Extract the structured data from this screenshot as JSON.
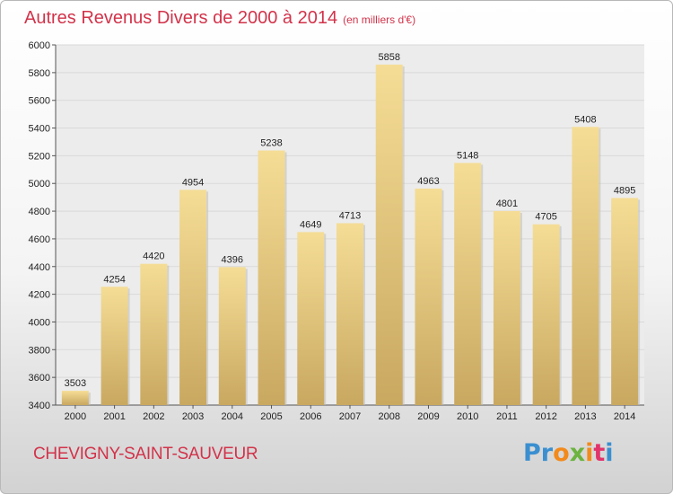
{
  "title": "Autres Revenus Divers de 2000 à 2014",
  "unit": "(en milliers d'€)",
  "location": "CHEVIGNY-SAINT-SAUVEUR",
  "brand": {
    "letters": [
      "P",
      "r",
      "o",
      "x",
      "i",
      "t",
      "i"
    ],
    "colors": [
      "#3a8fd0",
      "#3a8fd0",
      "#f28a1c",
      "#6cb33f",
      "#f28a1c",
      "#e2336b",
      "#3a8fd0"
    ]
  },
  "colors": {
    "bar_top": "#f5dd96",
    "bar_bottom": "#c9a860",
    "title": "#d2334a",
    "grid": "#d9d9d9"
  },
  "chart_data": {
    "type": "bar",
    "categories": [
      "2000",
      "2001",
      "2002",
      "2003",
      "2004",
      "2005",
      "2006",
      "2007",
      "2008",
      "2009",
      "2010",
      "2011",
      "2012",
      "2013",
      "2014"
    ],
    "values": [
      3503,
      4254,
      4420,
      4954,
      4396,
      5238,
      4649,
      4713,
      5858,
      4963,
      5148,
      4801,
      4705,
      5408,
      4895
    ],
    "title": "Autres Revenus Divers de 2000 à 2014",
    "subtitle": "(en milliers d'€)",
    "xlabel": "",
    "ylabel": "",
    "ylim": [
      3400,
      6000
    ],
    "yticks": [
      3400,
      3600,
      3800,
      4000,
      4200,
      4400,
      4600,
      4800,
      5000,
      5200,
      5400,
      5600,
      5800,
      6000
    ],
    "grid": true
  }
}
